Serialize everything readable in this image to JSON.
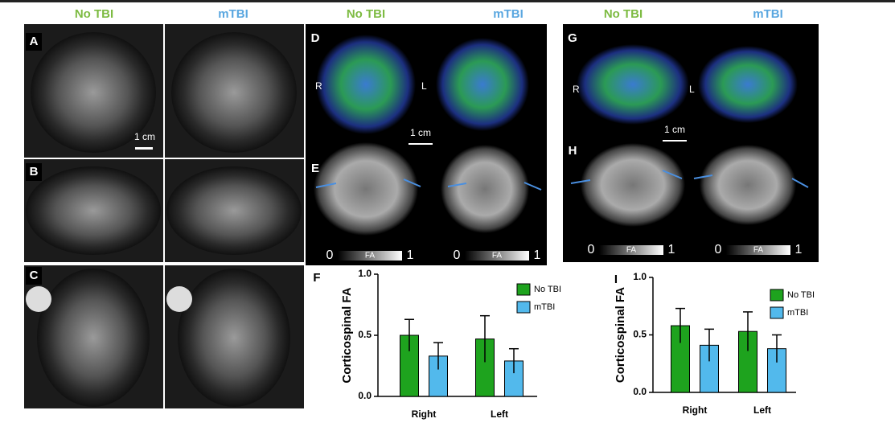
{
  "column_headers": [
    "No TBI",
    "mTBI",
    "No TBI",
    "mTBI",
    "No TBI",
    "mTBI"
  ],
  "panel_labels": [
    "A",
    "B",
    "C",
    "D",
    "E",
    "F",
    "G",
    "H",
    "I"
  ],
  "orientation_labels": [
    "R",
    "L",
    "R",
    "L"
  ],
  "scale_bars": [
    "1 cm",
    "1 cm",
    "1 cm"
  ],
  "colorbars": [
    {
      "min": "0",
      "label": "FA",
      "max": "1"
    },
    {
      "min": "0",
      "label": "FA",
      "max": "1"
    },
    {
      "min": "0",
      "label": "FA",
      "max": "1"
    },
    {
      "min": "0",
      "label": "FA",
      "max": "1"
    }
  ],
  "chart_data": [
    {
      "type": "bar",
      "y_label": "Corticospinal FA",
      "categories": [
        "Right",
        "Left"
      ],
      "series": [
        {
          "name": "No TBI",
          "color": "#1ea31e",
          "values": [
            0.5,
            0.47
          ],
          "errors": [
            0.13,
            0.19
          ]
        },
        {
          "name": "mTBI",
          "color": "#52b9ec",
          "values": [
            0.33,
            0.29
          ],
          "errors": [
            0.11,
            0.1
          ]
        }
      ],
      "ylim": [
        0,
        1
      ],
      "yticks": [
        {
          "value": 0,
          "label": "0.0"
        },
        {
          "value": 0.5,
          "label": "0.5"
        },
        {
          "value": 1,
          "label": "1.0"
        }
      ],
      "legend": "upper right"
    },
    {
      "type": "bar",
      "y_label": "Corticospinal FA",
      "categories": [
        "Right",
        "Left"
      ],
      "series": [
        {
          "name": "No TBI",
          "color": "#1ea31e",
          "values": [
            0.58,
            0.53
          ],
          "errors": [
            0.15,
            0.17
          ]
        },
        {
          "name": "mTBI",
          "color": "#52b9ec",
          "values": [
            0.41,
            0.38
          ],
          "errors": [
            0.14,
            0.12
          ]
        }
      ],
      "ylim": [
        0,
        1
      ],
      "yticks": [
        {
          "value": 0,
          "label": "0.0"
        },
        {
          "value": 0.5,
          "label": "0.5"
        },
        {
          "value": 1,
          "label": "1.0"
        }
      ],
      "legend": "upper right"
    }
  ]
}
